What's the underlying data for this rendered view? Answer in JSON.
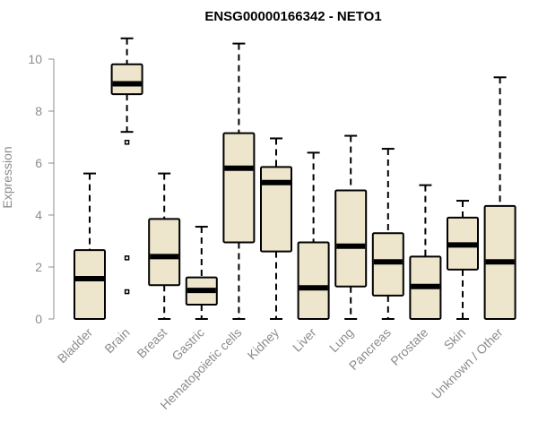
{
  "chart_data": {
    "type": "boxplot",
    "title": "ENSG00000166342 - NETO1",
    "xlabel": "",
    "ylabel": "Expression",
    "ylim": [
      0,
      11
    ],
    "yticks": [
      0,
      2,
      4,
      6,
      8,
      10
    ],
    "box_fill": "#ede6cc",
    "box_stroke": "#000000",
    "categories": [
      "Bladder",
      "Brain",
      "Breast",
      "Gastric",
      "Hematopoietic cells",
      "Kidney",
      "Liver",
      "Lung",
      "Pancreas",
      "Prostate",
      "Skin",
      "Unknown / Other"
    ],
    "boxes": [
      {
        "min": 0,
        "q1": 0,
        "median": 1.55,
        "q3": 2.65,
        "max": 5.6,
        "outliers": []
      },
      {
        "min": 7.2,
        "q1": 8.65,
        "median": 9.05,
        "q3": 9.8,
        "max": 10.8,
        "outliers": [
          6.8,
          2.35,
          1.05
        ]
      },
      {
        "min": 0,
        "q1": 1.3,
        "median": 2.4,
        "q3": 3.85,
        "max": 5.6,
        "outliers": []
      },
      {
        "min": 0,
        "q1": 0.55,
        "median": 1.1,
        "q3": 1.6,
        "max": 3.55,
        "outliers": []
      },
      {
        "min": 0,
        "q1": 2.95,
        "median": 5.8,
        "q3": 7.15,
        "max": 10.6,
        "outliers": []
      },
      {
        "min": 0,
        "q1": 2.6,
        "median": 5.25,
        "q3": 5.85,
        "max": 6.95,
        "outliers": []
      },
      {
        "min": 0,
        "q1": 0,
        "median": 1.2,
        "q3": 2.95,
        "max": 6.4,
        "outliers": []
      },
      {
        "min": 0,
        "q1": 1.25,
        "median": 2.8,
        "q3": 4.95,
        "max": 7.05,
        "outliers": []
      },
      {
        "min": 0,
        "q1": 0.9,
        "median": 2.2,
        "q3": 3.3,
        "max": 6.55,
        "outliers": []
      },
      {
        "min": 0,
        "q1": 0,
        "median": 1.25,
        "q3": 2.4,
        "max": 5.15,
        "outliers": []
      },
      {
        "min": 0,
        "q1": 1.9,
        "median": 2.85,
        "q3": 3.9,
        "max": 4.55,
        "outliers": []
      },
      {
        "min": 0,
        "q1": 0,
        "median": 2.2,
        "q3": 4.35,
        "max": 9.3,
        "outliers": []
      }
    ]
  }
}
